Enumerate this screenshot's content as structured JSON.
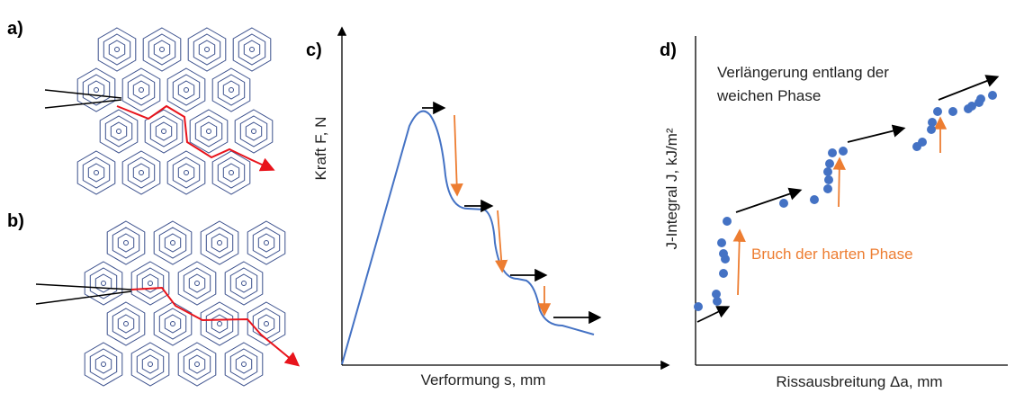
{
  "panels": [
    {
      "label": "a)"
    },
    {
      "label": "b)"
    },
    {
      "label": "c)",
      "y_axis_label": "Kraft F, N",
      "x_axis_label": "Verformung s, mm"
    },
    {
      "label": "d)",
      "y_axis_label": "J-Integral J, kJ/m²",
      "x_axis_label": "Rissausbreitung Δa, mm",
      "annotations": [
        "Verlängerung entlang der",
        "weichen Phase",
        "Bruch der harten Phase"
      ]
    }
  ]
}
